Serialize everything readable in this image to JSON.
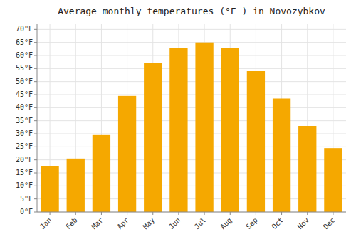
{
  "chart_data": {
    "type": "bar",
    "title": "Average monthly temperatures (°F ) in Novozybkov",
    "categories": [
      "Jan",
      "Feb",
      "Mar",
      "Apr",
      "May",
      "Jun",
      "Jul",
      "Aug",
      "Sep",
      "Oct",
      "Nov",
      "Dec"
    ],
    "values": [
      17.5,
      20.5,
      29.5,
      44.5,
      57.0,
      63.0,
      65.0,
      63.0,
      54.0,
      43.5,
      33.0,
      24.5
    ],
    "color": "#F5A800",
    "ylim": [
      0,
      72
    ],
    "yticks": [
      {
        "value": 0,
        "label": "0°F"
      },
      {
        "value": 5,
        "label": "5°F"
      },
      {
        "value": 10,
        "label": "10°F"
      },
      {
        "value": 15,
        "label": "15°F"
      },
      {
        "value": 20,
        "label": "20°F"
      },
      {
        "value": 25,
        "label": "25°F"
      },
      {
        "value": 30,
        "label": "30°F"
      },
      {
        "value": 35,
        "label": "35°F"
      },
      {
        "value": 40,
        "label": "40°F"
      },
      {
        "value": 45,
        "label": "45°F"
      },
      {
        "value": 50,
        "label": "50°F"
      },
      {
        "value": 55,
        "label": "55°F"
      },
      {
        "value": 60,
        "label": "60°F"
      },
      {
        "value": 65,
        "label": "65°F"
      },
      {
        "value": 70,
        "label": "70°F"
      }
    ],
    "grid": true
  }
}
